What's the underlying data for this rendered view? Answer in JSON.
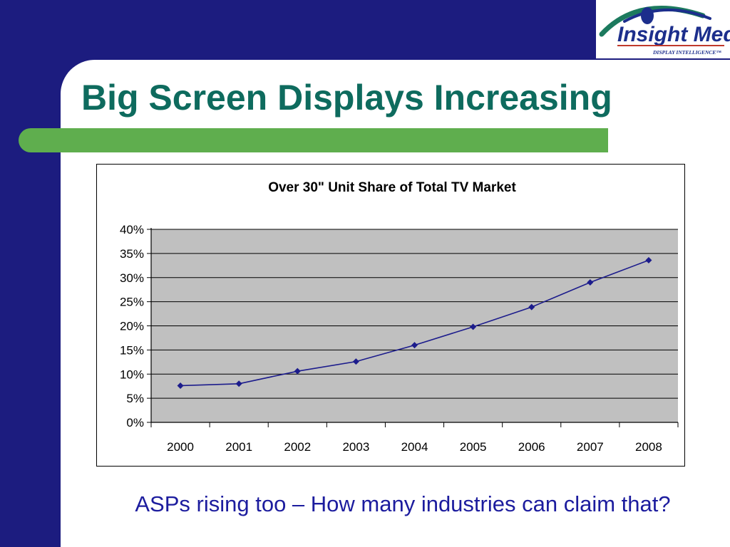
{
  "slide": {
    "title": "Big Screen Displays Increasing",
    "caption": "ASPs rising too – How many industries can claim that?"
  },
  "logo": {
    "name": "Insight Media",
    "tagline": "DISPLAY INTELLIGENCE™"
  },
  "colors": {
    "background": "#1c1c7f",
    "title": "#0e6b5e",
    "accent_bar": "#5fae4e",
    "caption": "#1c1c9e",
    "series": "#1c1c8c",
    "plot_area": "#c0c0c0"
  },
  "chart_data": {
    "type": "line",
    "title": "Over 30\" Unit Share of Total TV Market",
    "xlabel": "",
    "ylabel": "",
    "categories": [
      "2000",
      "2001",
      "2002",
      "2003",
      "2004",
      "2005",
      "2006",
      "2007",
      "2008"
    ],
    "series": [
      {
        "values": [
          7.6,
          8.0,
          10.6,
          12.6,
          16.0,
          19.8,
          23.9,
          29.0,
          33.6
        ]
      }
    ],
    "ylim": [
      0,
      40
    ],
    "yticks": [
      0,
      5,
      10,
      15,
      20,
      25,
      30,
      35,
      40
    ],
    "ytick_labels": [
      "0%",
      "5%",
      "10%",
      "15%",
      "20%",
      "25%",
      "30%",
      "35%",
      "40%"
    ],
    "grid": true,
    "legend": "none"
  }
}
